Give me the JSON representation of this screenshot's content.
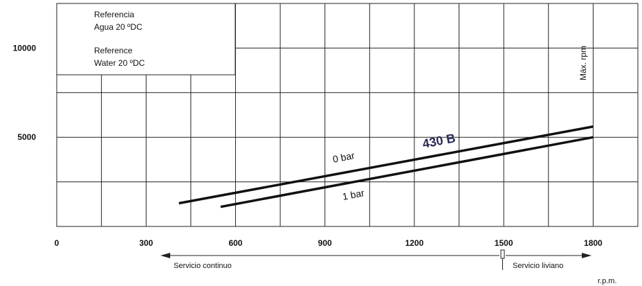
{
  "chart_data": {
    "type": "line",
    "xlabel": "r.p.m.",
    "xlim": [
      0,
      1950
    ],
    "ylim": [
      0,
      12500
    ],
    "x_ticks": [
      "0",
      "300",
      "600",
      "900",
      "1200",
      "1500",
      "1800"
    ],
    "y_ticks": [
      "5000",
      "10000"
    ],
    "grid": true,
    "series": [
      {
        "name": "0 bar",
        "x": [
          410,
          1800
        ],
        "y": [
          1300,
          5600
        ]
      },
      {
        "name": "1 bar",
        "x": [
          550,
          1800
        ],
        "y": [
          1100,
          5000
        ]
      }
    ],
    "annotations": {
      "model": "430 B",
      "max_rpm": "Máx. rpm",
      "reference_es": [
        "Referencia",
        "Agua 20 ºDC"
      ],
      "reference_en": [
        "Reference",
        "Water 20 ºDC"
      ],
      "service_continuous": "Servicio continuo",
      "service_light": "Servicio liviano",
      "service_boundary_rpm": 1500
    }
  }
}
